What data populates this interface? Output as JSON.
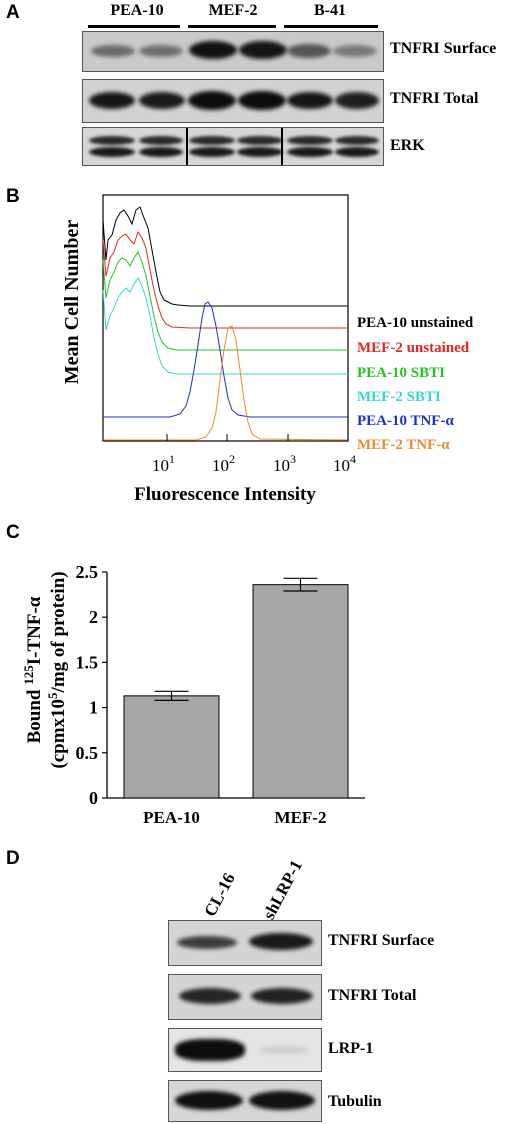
{
  "panelA": {
    "letter": "A",
    "lanes": [
      "PEA-10",
      "MEF-2",
      "B-41"
    ],
    "rows": [
      "TNFRI Surface",
      "TNFRI Total",
      "ERK"
    ]
  },
  "panelB": {
    "letter": "B",
    "ylabel": "Mean Cell Number",
    "xlabel": "Fluorescence Intensity",
    "ticks": [
      "10",
      "10",
      "10",
      "10"
    ],
    "tick_exps": [
      "1",
      "2",
      "3",
      "4"
    ],
    "legend": [
      {
        "name": "PEA-10 unstained",
        "color": "#000000"
      },
      {
        "name": "MEF-2 unstained",
        "color": "#e8241f"
      },
      {
        "name": "PEA-10 SBTI",
        "color": "#22c422"
      },
      {
        "name": "MEF-2 SBTI",
        "color": "#3ad5d5"
      },
      {
        "name": "PEA-10 TNF-α",
        "color": "#1f2ecc"
      },
      {
        "name": "MEF-2 TNF-α",
        "color": "#ee8a2a"
      }
    ]
  },
  "panelC": {
    "letter": "C",
    "ylabel_line1_pre": "Bound ",
    "ylabel_line1_sup": "125",
    "ylabel_line1_post": "I-TNF-α",
    "ylabel_line2_pre": "(cpmx10",
    "ylabel_line2_sup": "5",
    "ylabel_line2_post": "/mg of protein)",
    "yticks": [
      "0",
      "0.5",
      "1",
      "1.5",
      "2",
      "2.5"
    ]
  },
  "chart_data": {
    "type": "bar",
    "categories": [
      "PEA-10",
      "MEF-2"
    ],
    "values": [
      1.13,
      2.36
    ],
    "errors": [
      0.05,
      0.07
    ],
    "ylim": [
      0,
      2.5
    ],
    "bar_color": "#a6a6a6"
  },
  "panelD": {
    "letter": "D",
    "lanes": [
      "CL-16",
      "shLRP-1"
    ],
    "rows": [
      "TNFRI Surface",
      "TNFRI Total",
      "LRP-1",
      "Tubulin"
    ]
  }
}
